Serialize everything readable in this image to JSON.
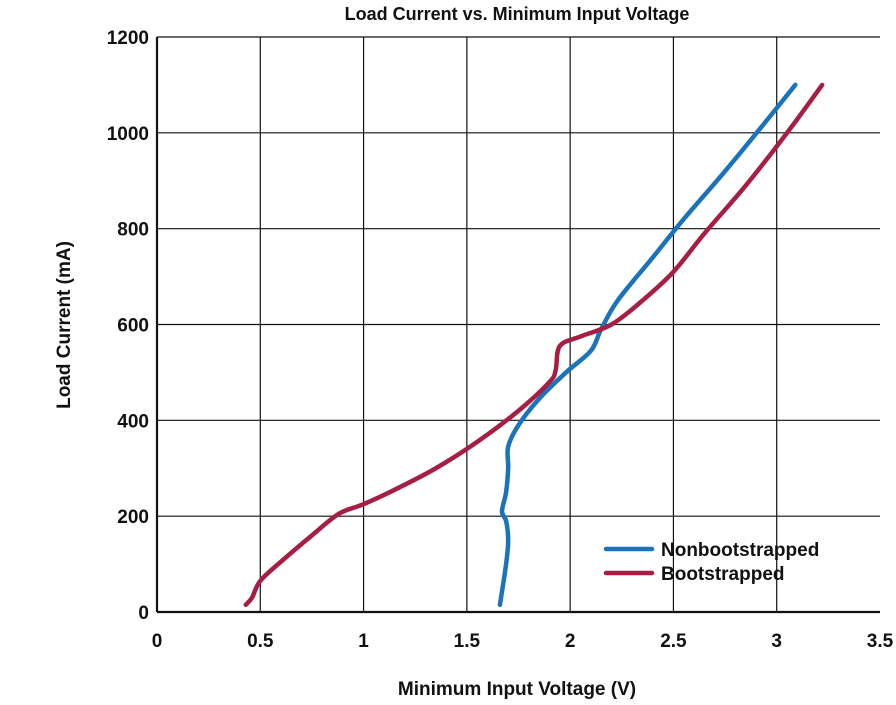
{
  "chart_data": {
    "type": "line",
    "title": "Load Current vs. Minimum Input Voltage",
    "xlabel": "Minimum Input Voltage (V)",
    "ylabel": "Load Current (mA)",
    "xlim": [
      0,
      3.5
    ],
    "ylim": [
      0,
      1200
    ],
    "x_ticks": [
      "0",
      "0.5",
      "1",
      "1.5",
      "2",
      "2.5",
      "3",
      "3.5"
    ],
    "y_ticks": [
      "0",
      "200",
      "400",
      "600",
      "800",
      "1000",
      "1200"
    ],
    "grid": true,
    "legend_position": "bottom-right",
    "series": [
      {
        "name": "Nonbootstrapped",
        "color": "#1a73bb",
        "x": [
          1.66,
          1.69,
          1.7,
          1.69,
          1.67,
          1.69,
          1.7,
          1.7,
          1.75,
          1.85,
          1.98,
          2.1,
          2.15,
          2.23,
          2.4,
          2.55,
          2.75,
          2.95,
          3.09
        ],
        "y": [
          15,
          100,
          150,
          190,
          210,
          250,
          300,
          345,
          390,
          445,
          500,
          545,
          590,
          650,
          740,
          820,
          920,
          1025,
          1100
        ]
      },
      {
        "name": "Bootstrapped",
        "color": "#a71e45",
        "x": [
          0.43,
          0.46,
          0.5,
          0.6,
          0.75,
          0.88,
          1.0,
          1.15,
          1.35,
          1.55,
          1.75,
          1.9,
          1.93,
          1.95,
          2.05,
          2.2,
          2.35,
          2.5,
          2.65,
          2.85,
          3.05,
          3.22
        ],
        "y": [
          15,
          30,
          65,
          105,
          160,
          205,
          225,
          255,
          300,
          355,
          420,
          480,
          505,
          555,
          575,
          600,
          650,
          710,
          790,
          890,
          1000,
          1100
        ]
      }
    ]
  }
}
